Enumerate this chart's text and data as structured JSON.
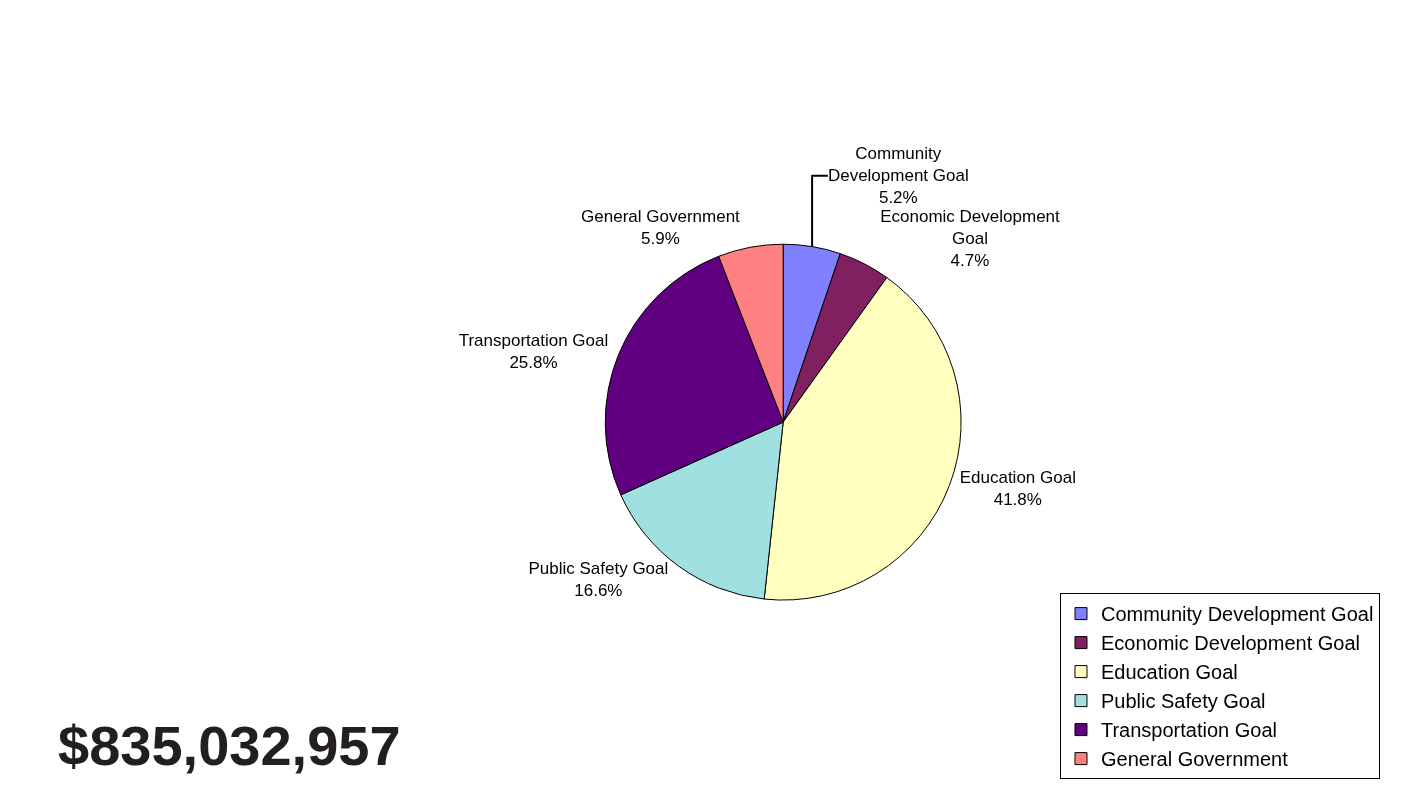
{
  "chart_data": {
    "type": "pie",
    "categories": [
      "Community Development Goal",
      "Economic Development Goal",
      "Education Goal",
      "Public Safety Goal",
      "Transportation Goal",
      "General Government"
    ],
    "values": [
      5.2,
      4.7,
      41.8,
      16.6,
      25.8,
      5.9
    ],
    "colors": [
      "#8080ff",
      "#802060",
      "#ffffc0",
      "#a0e0e0",
      "#600080",
      "#ff8080"
    ],
    "value_labels": [
      "5.2%",
      "4.7%",
      "41.8%",
      "16.6%",
      "25.8%",
      "5.9%"
    ],
    "legend": "bottom right",
    "annotations": [
      "$835,032,957"
    ]
  }
}
